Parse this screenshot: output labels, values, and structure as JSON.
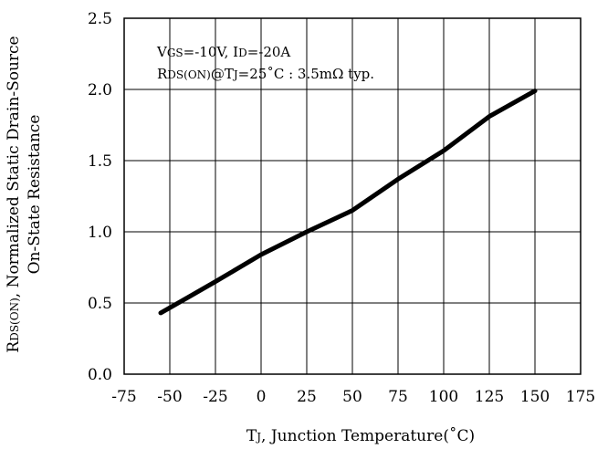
{
  "chart_data": {
    "type": "line",
    "xlabel": {
      "prefix": "T",
      "sub": "J",
      "rest": ", Junction Temperature(˚C)"
    },
    "ylabel": {
      "line1_prefix": "R",
      "line1_sub": "DS(ON)",
      "line1_rest": ", Normalized Static Drain-Source",
      "line2": "On-State Resistance"
    },
    "xlim": [
      -75,
      175
    ],
    "ylim": [
      0,
      2.5
    ],
    "x_ticks": [
      -75,
      -50,
      -25,
      0,
      25,
      50,
      75,
      100,
      125,
      150,
      175
    ],
    "x_tick_labels": [
      "-75",
      "-50",
      "-25",
      "0",
      "25",
      "50",
      "75",
      "100",
      "125",
      "150",
      "175"
    ],
    "y_ticks": [
      0,
      0.5,
      1.0,
      1.5,
      2.0,
      2.5
    ],
    "y_tick_labels": [
      "0.0",
      "0.5",
      "1.0",
      "1.5",
      "2.0",
      "2.5"
    ],
    "grid": true,
    "annotations": {
      "line1": {
        "v": "V",
        "v_sub": "GS",
        "v_rest": "=-10V, ",
        "i": "I",
        "i_sub": "D",
        "i_rest": "=-20A"
      },
      "line2": {
        "r": "R",
        "r_sub": "DS(ON)",
        "at": "@T",
        "t_sub": "J",
        "rest": "=25˚C : 3.5mΩ typ."
      }
    },
    "series": [
      {
        "color": "#000000",
        "x": [
          -55,
          -40,
          -25,
          0,
          25,
          50,
          75,
          100,
          125,
          150
        ],
        "y": [
          0.43,
          0.54,
          0.65,
          0.84,
          1.0,
          1.15,
          1.37,
          1.57,
          1.81,
          1.99
        ]
      }
    ]
  }
}
